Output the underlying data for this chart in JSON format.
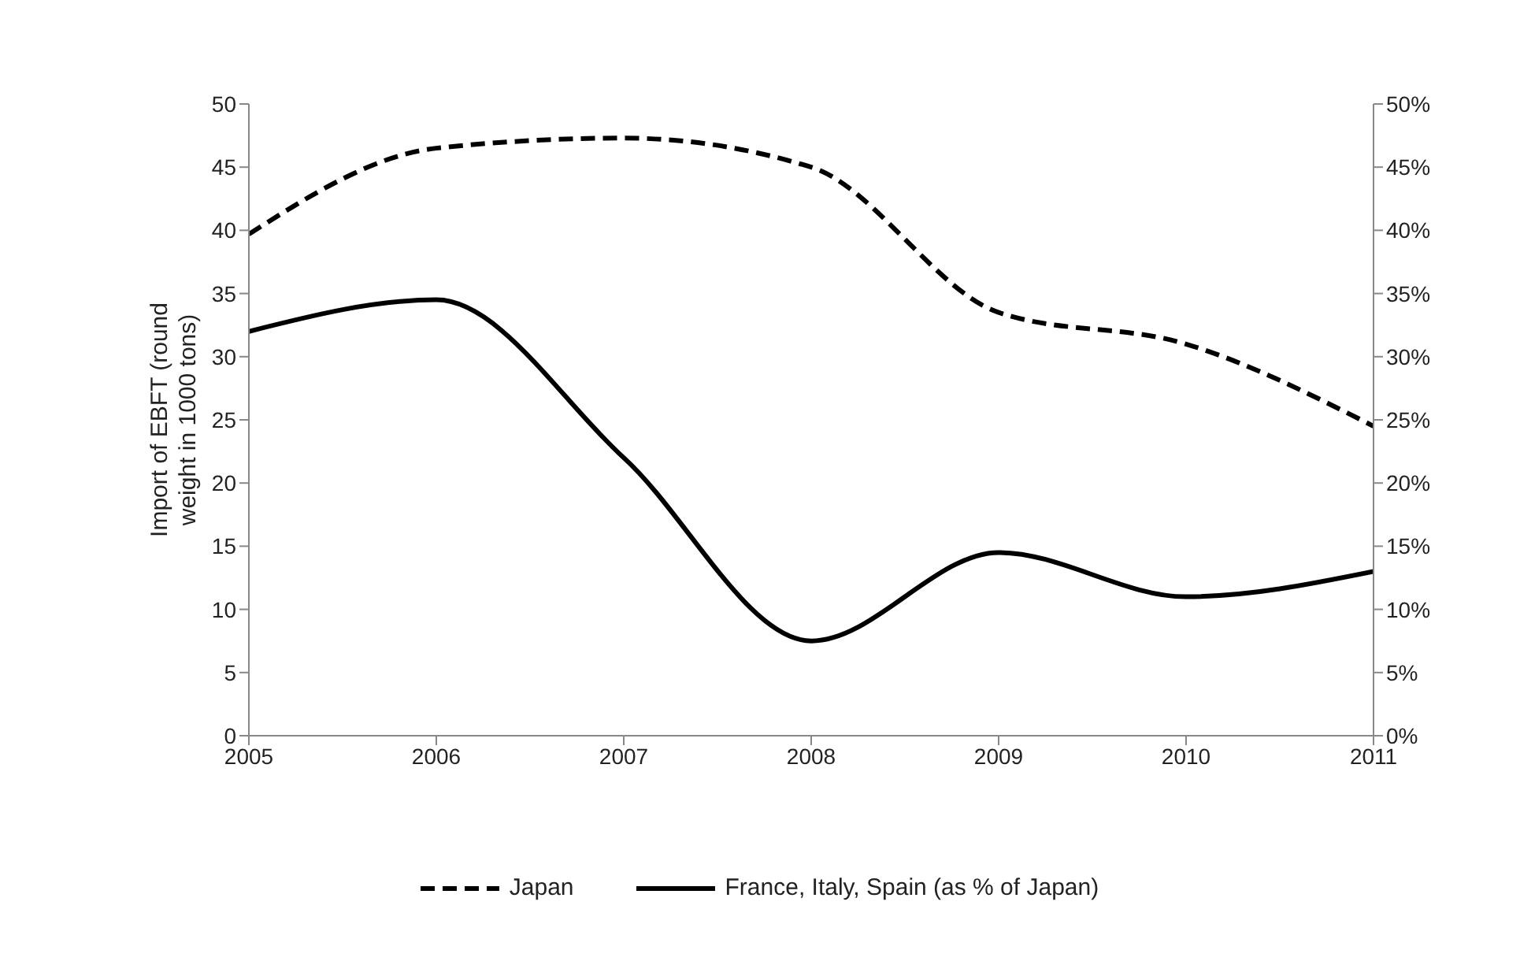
{
  "chart_data": {
    "type": "line",
    "ylabel": "Import of EBFT (round weight in 1000 tons)",
    "x": [
      2005,
      2006,
      2007,
      2008,
      2009,
      2010,
      2011
    ],
    "xlim": [
      2005,
      2011
    ],
    "xticks": [
      2005,
      2006,
      2007,
      2008,
      2009,
      2010,
      2011
    ],
    "ylim": [
      0,
      50
    ],
    "yticks": [
      0,
      5,
      10,
      15,
      20,
      25,
      30,
      35,
      40,
      45,
      50
    ],
    "y2lim": [
      0,
      50
    ],
    "y2ticks": [
      {
        "value": 0,
        "label": "0%"
      },
      {
        "value": 5,
        "label": "5%"
      },
      {
        "value": 10,
        "label": "10%"
      },
      {
        "value": 15,
        "label": "15%"
      },
      {
        "value": 20,
        "label": "20%"
      },
      {
        "value": 25,
        "label": "25%"
      },
      {
        "value": 30,
        "label": "30%"
      },
      {
        "value": 35,
        "label": "35%"
      },
      {
        "value": 40,
        "label": "40%"
      },
      {
        "value": 45,
        "label": "45%"
      },
      {
        "value": 50,
        "label": "50%"
      }
    ],
    "legend": "bottom",
    "marker": "none",
    "series": [
      {
        "name": "Japan",
        "color": "#000000",
        "line_style": "dashed",
        "values": [
          39.7,
          46.5,
          47.3,
          45,
          33.5,
          31,
          24.5
        ]
      },
      {
        "name": "France, Italy, Spain (as % of Japan)",
        "color": "#000000",
        "line_style": "solid",
        "axis": "y2",
        "values": [
          32,
          34.5,
          22,
          7.5,
          14.5,
          11,
          13
        ]
      }
    ]
  }
}
